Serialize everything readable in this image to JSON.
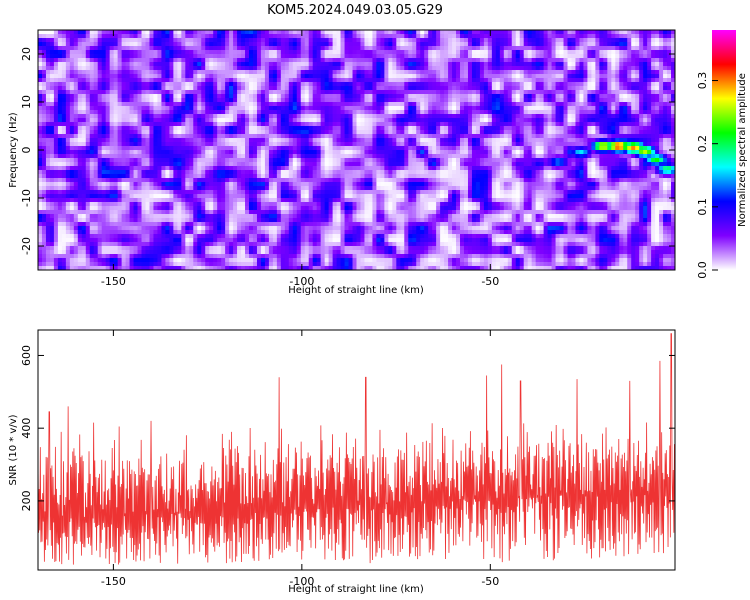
{
  "title": "KOM5.2024.049.03.05.G29",
  "chart_data": [
    {
      "type": "heatmap",
      "xlabel": "Height of straight line (km)",
      "ylabel": "Frequency (Hz)",
      "xlim": [
        -170,
        -1
      ],
      "ylim": [
        -25,
        25
      ],
      "xticks": [
        -150,
        -100,
        -50
      ],
      "yticks": [
        -20,
        -10,
        0,
        10,
        20
      ],
      "colorbar": {
        "label": "Normalized spectral amplitude",
        "range": [
          0.0,
          0.38
        ],
        "ticks": [
          0.0,
          0.1,
          0.2,
          0.3
        ],
        "colormap": [
          "#ffffff",
          "#7f00ff",
          "#0000ff",
          "#00ffff",
          "#00ff00",
          "#ffff00",
          "#ff0000",
          "#ff00ff"
        ]
      },
      "trace": {
        "note_values": "bright feature near end of record",
        "points": [
          {
            "x": -32,
            "y": -2.5,
            "v": 0.14
          },
          {
            "x": -26,
            "y": -0.5,
            "v": 0.16
          },
          {
            "x": -20,
            "y": 0.8,
            "v": 0.28
          },
          {
            "x": -16,
            "y": 0.8,
            "v": 0.33
          },
          {
            "x": -12,
            "y": 0.5,
            "v": 0.3
          },
          {
            "x": -9,
            "y": -0.3,
            "v": 0.26
          },
          {
            "x": -6,
            "y": -2.0,
            "v": 0.22
          },
          {
            "x": -3,
            "y": -4.0,
            "v": 0.2
          }
        ]
      },
      "background_level": [
        0.0,
        0.12
      ]
    },
    {
      "type": "line",
      "xlabel": "Height of straight line (km)",
      "ylabel": "SNR (10 * v/v)",
      "xlim": [
        -170,
        -1
      ],
      "ylim": [
        10,
        670
      ],
      "xticks": [
        -150,
        -100,
        -50
      ],
      "yticks": [
        200,
        400,
        600
      ],
      "series": [
        {
          "color": "#ee3333",
          "baseline": 150,
          "baseline_end": 230,
          "typical_peak": 430,
          "max_peaks": [
            {
              "x": -167,
              "y": 445
            },
            {
              "x": -162,
              "y": 460
            },
            {
              "x": -140,
              "y": 420
            },
            {
              "x": -106,
              "y": 540
            },
            {
              "x": -83,
              "y": 540
            },
            {
              "x": -51,
              "y": 545
            },
            {
              "x": -47,
              "y": 575
            },
            {
              "x": -42,
              "y": 530
            },
            {
              "x": -27,
              "y": 535
            },
            {
              "x": -13,
              "y": 530
            },
            {
              "x": -5,
              "y": 585
            },
            {
              "x": -2,
              "y": 660
            }
          ]
        }
      ]
    }
  ]
}
